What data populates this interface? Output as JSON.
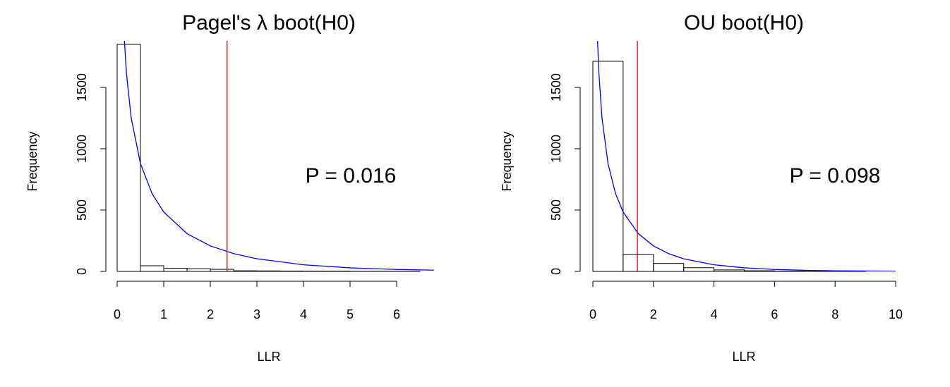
{
  "chart_data": [
    {
      "type": "bar",
      "title": "Pagel's λ boot(H0)",
      "xlabel": "LLR",
      "ylabel": "Frequency",
      "xlim": [
        0,
        6.5
      ],
      "ylim": [
        0,
        1850
      ],
      "x_ticks": [
        "0",
        "1",
        "2",
        "3",
        "4",
        "5",
        "6"
      ],
      "y_ticks": [
        "0",
        "500",
        "1000",
        "1500"
      ],
      "bin_width": 0.5,
      "bin_starts": [
        0,
        0.5,
        1,
        1.5,
        2,
        2.5,
        3,
        3.5,
        4,
        4.5,
        5,
        5.5,
        6
      ],
      "values": [
        1851,
        46,
        26,
        22,
        17,
        5,
        4,
        3,
        2,
        2,
        1,
        1,
        1
      ],
      "observed_llr": 2.36,
      "observed_line_color": "#cc0000",
      "curve_color": "#0000ff",
      "curve": {
        "x": [
          0.15,
          0.2,
          0.3,
          0.5,
          0.75,
          1,
          1.5,
          2,
          2.5,
          3,
          4,
          5,
          6,
          6.8
        ],
        "y": [
          1911,
          1614,
          1254,
          879,
          633,
          484,
          308,
          208,
          145,
          103,
          54,
          29,
          16,
          10
        ]
      },
      "annotation": "P = 0.016"
    },
    {
      "type": "bar",
      "title": "OU boot(H0)",
      "xlabel": "LLR",
      "ylabel": "Frequency",
      "xlim": [
        0,
        10
      ],
      "ylim": [
        0,
        1850
      ],
      "x_ticks": [
        "0",
        "2",
        "4",
        "6",
        "8",
        "10"
      ],
      "y_ticks": [
        "0",
        "500",
        "1000",
        "1500"
      ],
      "bin_width": 1,
      "bin_starts": [
        0,
        1,
        2,
        3,
        4,
        5,
        6,
        7,
        8,
        9
      ],
      "values": [
        1713,
        138,
        65,
        30,
        12,
        5,
        2,
        1,
        1,
        0
      ],
      "observed_llr": 1.47,
      "observed_line_color": "#cc0000",
      "curve_color": "#0000ff",
      "curve": {
        "x": [
          0.15,
          0.2,
          0.3,
          0.5,
          0.75,
          1,
          1.5,
          2,
          2.5,
          3,
          4,
          5,
          6,
          7,
          8,
          10
        ],
        "y": [
          1911,
          1614,
          1254,
          879,
          633,
          484,
          308,
          208,
          145,
          103,
          54,
          29,
          16,
          9,
          5,
          2
        ]
      },
      "annotation": "P = 0.098"
    }
  ]
}
